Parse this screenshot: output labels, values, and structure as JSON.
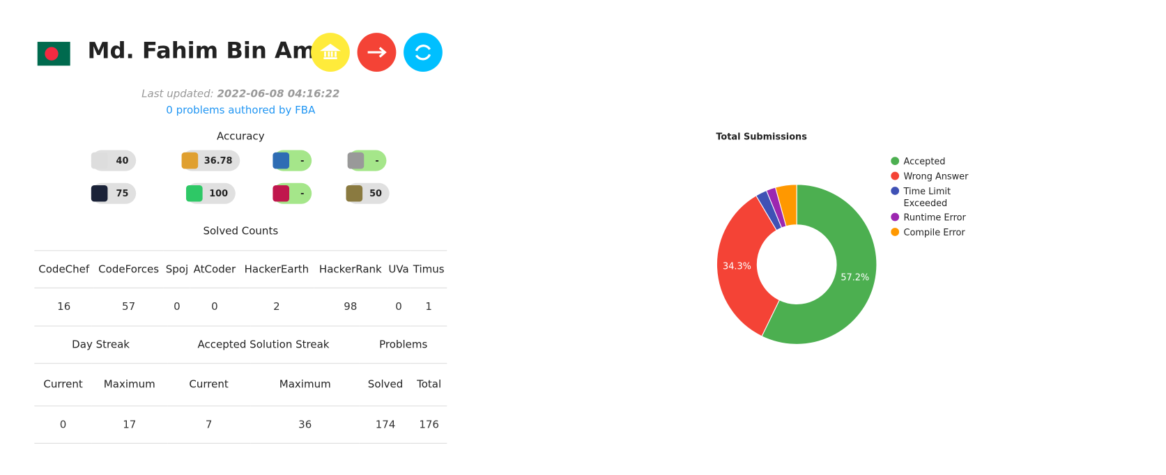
{
  "profile": {
    "name": "Md. Fahim Bin Amin",
    "last_updated_label": "Last updated:",
    "last_updated": "2022-06-08 04:16:22",
    "authored": "0 problems authored by FBA"
  },
  "accuracy": {
    "title": "Accuracy",
    "values": [
      40,
      36.78,
      "-",
      "-",
      75,
      100,
      "-",
      50
    ]
  },
  "solved_counts": {
    "title": "Solved Counts",
    "headers": [
      "CodeChef",
      "CodeForces",
      "Spoj",
      "AtCoder",
      "HackerEarth",
      "HackerRank",
      "UVa",
      "Timus"
    ],
    "values": [
      16,
      57,
      0,
      0,
      2,
      98,
      0,
      1
    ]
  },
  "streaks": {
    "groups": [
      "Day Streak",
      "Accepted Solution Streak",
      "Problems"
    ],
    "headers": [
      "Current",
      "Maximum",
      "Current",
      "Maximum",
      "Solved",
      "Total"
    ],
    "values": [
      0,
      17,
      7,
      36,
      174,
      176
    ]
  },
  "chart_data": {
    "type": "donut",
    "title": "Total Submissions",
    "categories": [
      "Accepted",
      "Wrong Answer",
      "Time Limit Exceeded",
      "Runtime Error",
      "Compile Error"
    ],
    "values": [
      57.2,
      34.3,
      2.3,
      1.9,
      4.3
    ],
    "value_labels": [
      "57.2%",
      "34.3%",
      null,
      null,
      null
    ],
    "colors": [
      "#4caf50",
      "#f44336",
      "#3f51b5",
      "#9c27b0",
      "#ff9800"
    ]
  }
}
